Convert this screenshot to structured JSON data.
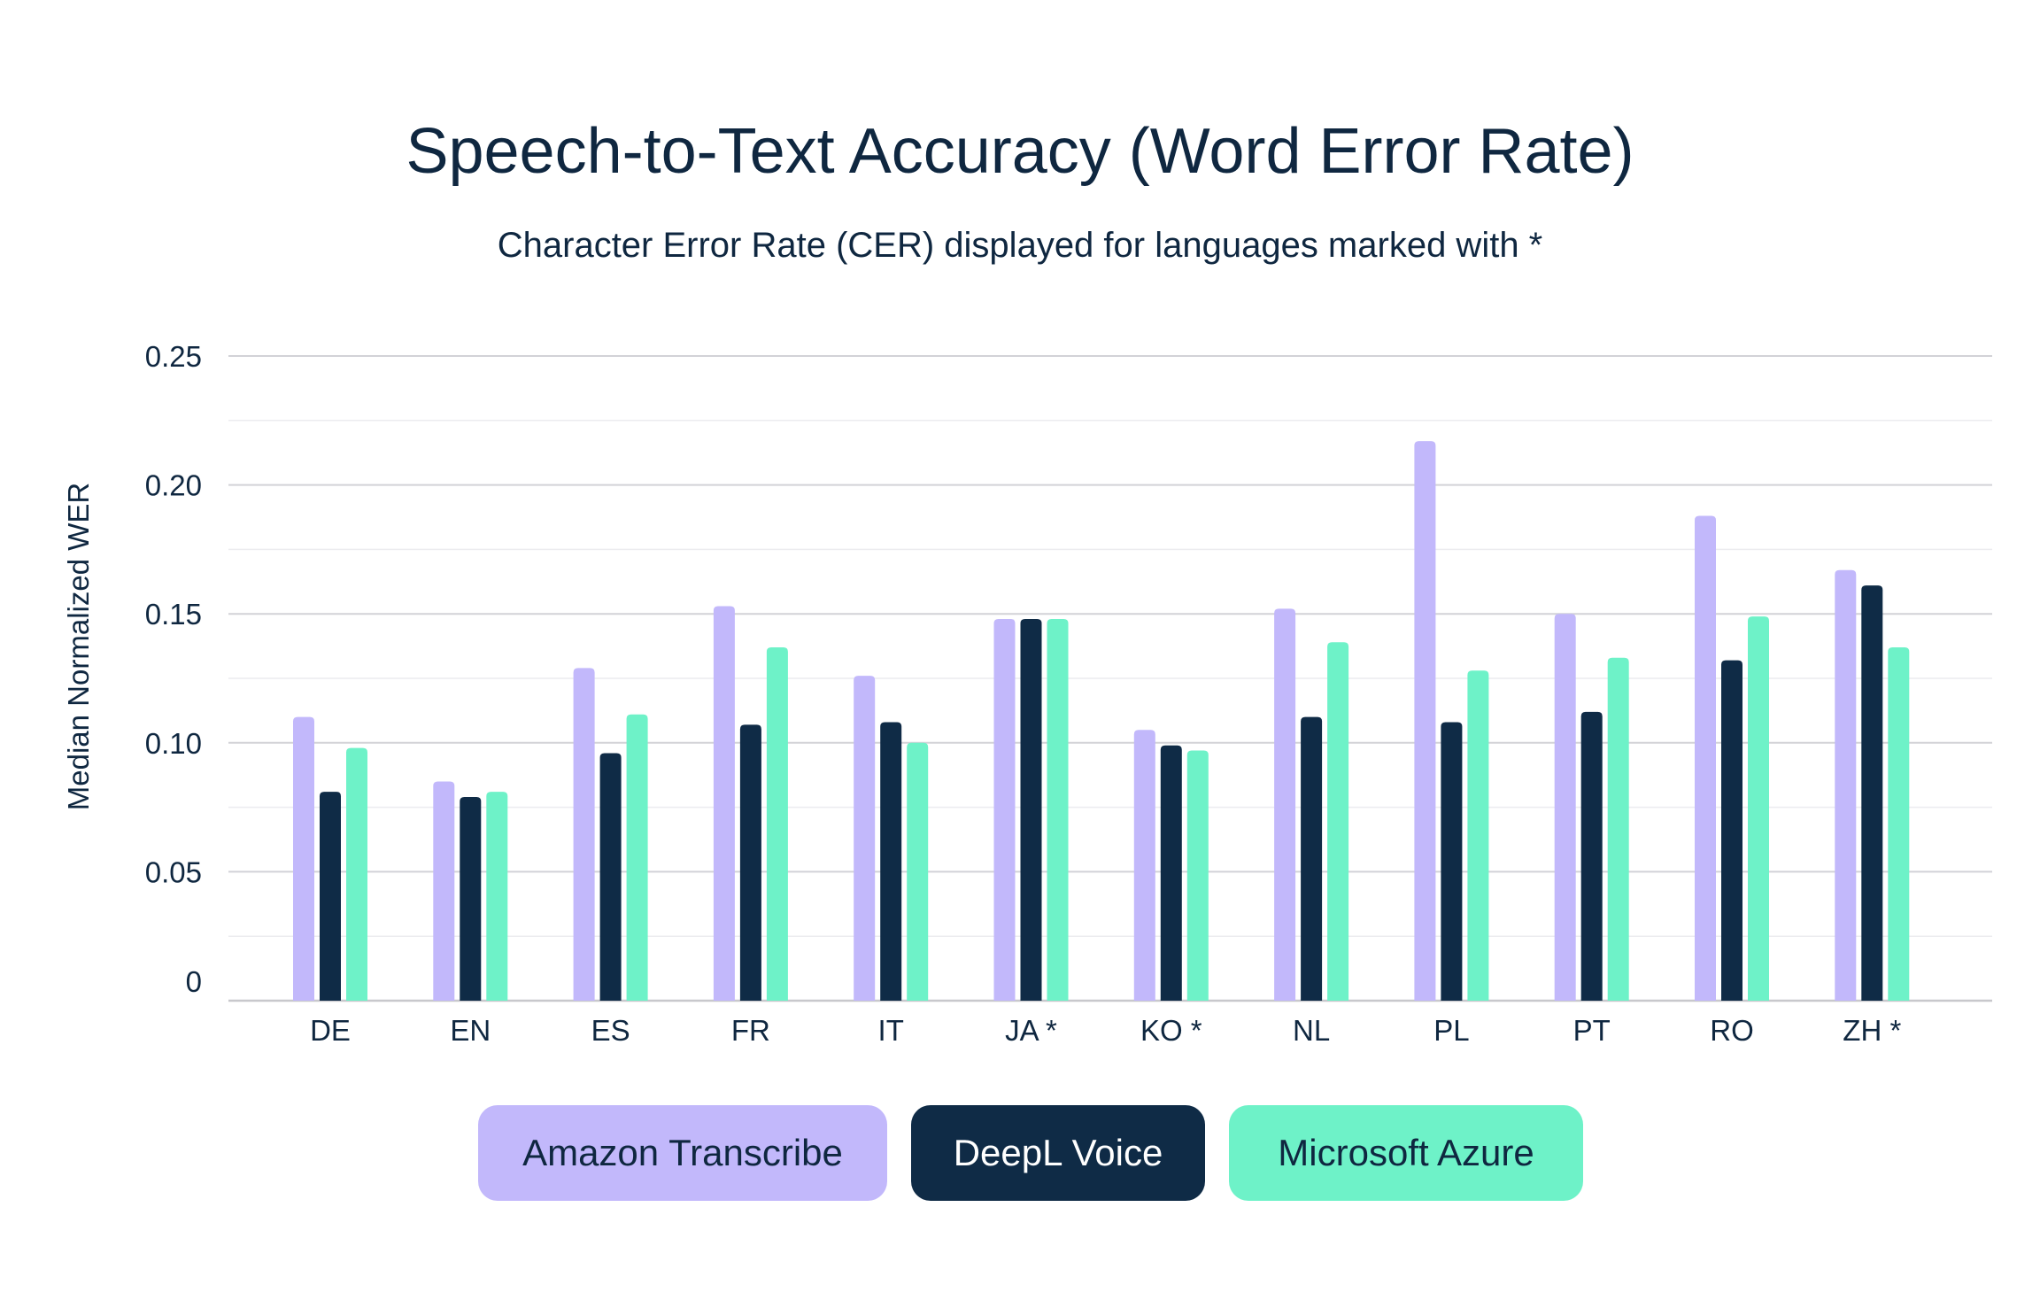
{
  "chart_data": {
    "type": "bar",
    "title": "Speech-to-Text Accuracy (Word Error Rate)",
    "subtitle": "Character Error Rate (CER) displayed for languages marked with *",
    "xlabel": "",
    "ylabel": "Median Normalized WER",
    "ylim": [
      0,
      0.25
    ],
    "yticks": [
      "0",
      "0.05",
      "0.10",
      "0.15",
      "0.20",
      "0.25"
    ],
    "yticks_values": [
      0,
      0.05,
      0.1,
      0.15,
      0.2,
      0.25
    ],
    "grid": true,
    "legend_position": "bottom",
    "categories": [
      "DE",
      "EN",
      "ES",
      "FR",
      "IT",
      "JA *",
      "KO *",
      "NL",
      "PL",
      "PT",
      "RO",
      "ZH *"
    ],
    "series": [
      {
        "name": "Amazon Transcribe",
        "color": "#c2b8fb",
        "values": [
          0.11,
          0.085,
          0.129,
          0.153,
          0.126,
          0.148,
          0.105,
          0.152,
          0.217,
          0.15,
          0.188,
          0.167
        ]
      },
      {
        "name": "DeepL Voice",
        "color": "#0f2b46",
        "values": [
          0.081,
          0.079,
          0.096,
          0.107,
          0.108,
          0.148,
          0.099,
          0.11,
          0.108,
          0.112,
          0.132,
          0.161
        ]
      },
      {
        "name": "Microsoft Azure",
        "color": "#6ef2c8",
        "values": [
          0.098,
          0.081,
          0.111,
          0.137,
          0.1,
          0.148,
          0.097,
          0.139,
          0.128,
          0.133,
          0.149,
          0.137
        ]
      }
    ]
  },
  "colors": {
    "text": "#0f2740",
    "grid": "#d9d9de",
    "axis": "#c8c8cc"
  }
}
